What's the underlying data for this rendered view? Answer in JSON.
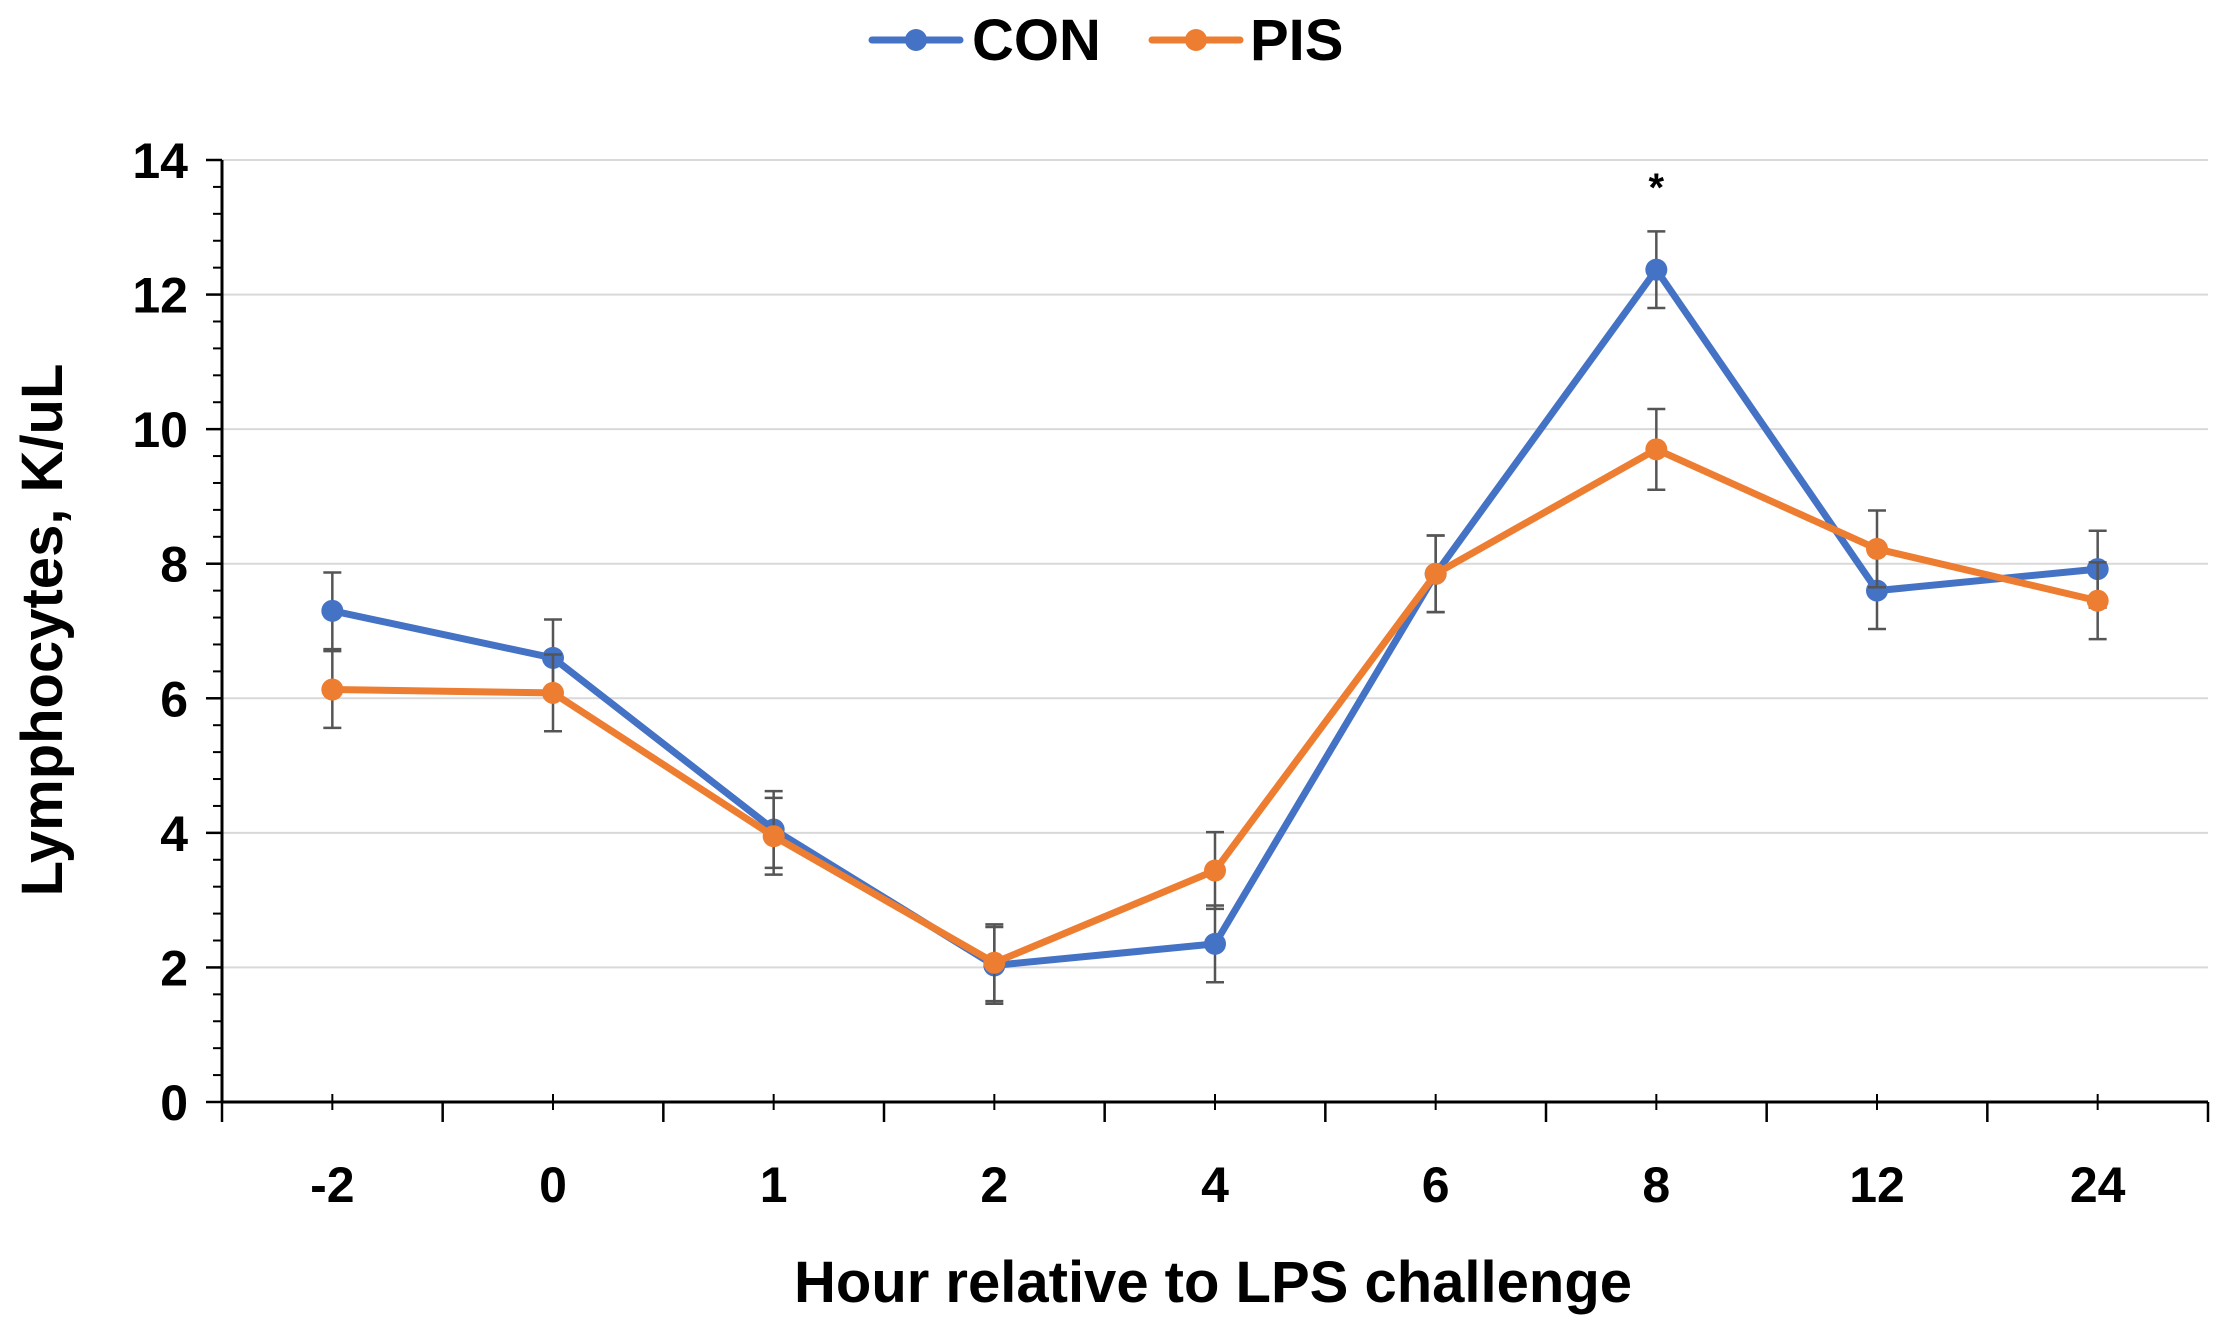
{
  "chart_data": {
    "type": "line",
    "title": "",
    "xlabel": "Hour relative to LPS challenge",
    "ylabel": "Lymphocytes, K/uL",
    "ylim": [
      0,
      14
    ],
    "yticks": [
      0,
      2,
      4,
      6,
      8,
      10,
      12,
      14
    ],
    "categories": [
      "-2",
      "0",
      "1",
      "2",
      "4",
      "6",
      "8",
      "12",
      "24"
    ],
    "grid": true,
    "legend": "top-center",
    "series": [
      {
        "name": "CON",
        "color": "#4472C4",
        "values": [
          7.3,
          6.6,
          4.05,
          2.03,
          2.35,
          7.85,
          12.37,
          7.6,
          7.92
        ],
        "errors": [
          0.57,
          0.57,
          0.57,
          0.57,
          0.57,
          0.57,
          0.57,
          0.57,
          0.57
        ]
      },
      {
        "name": "PIS",
        "color": "#ED7D31",
        "values": [
          6.13,
          6.08,
          3.95,
          2.07,
          3.44,
          7.85,
          9.7,
          8.22,
          7.45
        ],
        "errors": [
          0.57,
          0.57,
          0.57,
          0.57,
          0.57,
          0.57,
          0.6,
          0.57,
          0.57
        ]
      }
    ],
    "annotations": [
      {
        "category": "8",
        "text": "*",
        "y": 13.6
      }
    ]
  }
}
